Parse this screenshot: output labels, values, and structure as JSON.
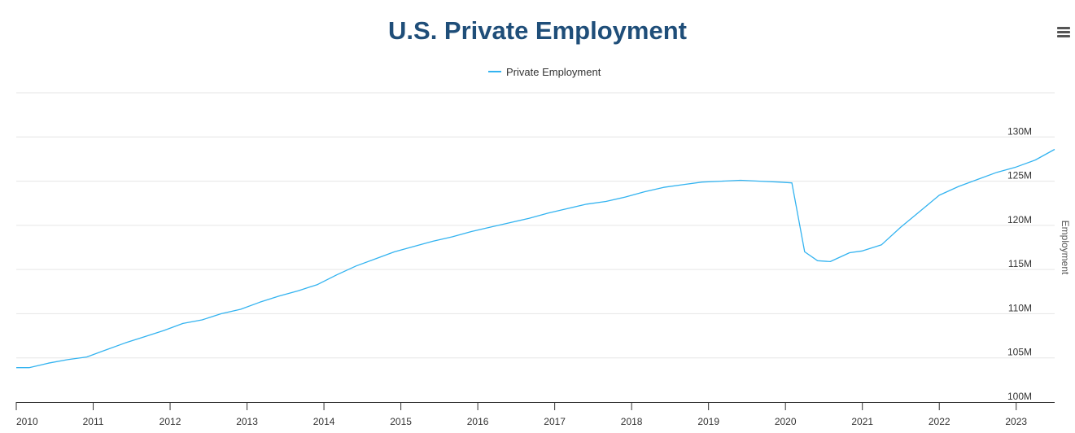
{
  "title": "U.S. Private Employment",
  "menu": {
    "icon": "hamburger-menu-icon"
  },
  "legend": {
    "label": "Private Employment",
    "color": "#33b3f0"
  },
  "colors": {
    "title": "#1f4e79",
    "series": "#33b3f0",
    "grid": "#e6e6e6",
    "axis": "#333333"
  },
  "chart_data": {
    "type": "line",
    "title": "U.S. Private Employment",
    "xlabel": "",
    "ylabel": "Employment",
    "y_axis_position": "right",
    "x_ticks": [
      "2010",
      "2011",
      "2012",
      "2013",
      "2014",
      "2015",
      "2016",
      "2017",
      "2018",
      "2019",
      "2020",
      "2021",
      "2022",
      "2023"
    ],
    "y_ticks": [
      "100M",
      "105M",
      "110M",
      "115M",
      "120M",
      "125M",
      "130M"
    ],
    "y_tick_values": [
      100,
      105,
      110,
      115,
      120,
      125,
      130
    ],
    "xlim": [
      "2010-01",
      "2023-07"
    ],
    "ylim": [
      100,
      135
    ],
    "y_unit": "millions",
    "grid": true,
    "legend_position": "top-center",
    "series": [
      {
        "name": "Private Employment",
        "x": [
          "2010-01",
          "2010-03",
          "2010-06",
          "2010-09",
          "2010-12",
          "2011-03",
          "2011-06",
          "2011-09",
          "2011-12",
          "2012-03",
          "2012-06",
          "2012-09",
          "2012-12",
          "2013-03",
          "2013-06",
          "2013-09",
          "2013-12",
          "2014-03",
          "2014-06",
          "2014-09",
          "2014-12",
          "2015-03",
          "2015-06",
          "2015-09",
          "2015-12",
          "2016-03",
          "2016-06",
          "2016-09",
          "2016-12",
          "2017-03",
          "2017-06",
          "2017-09",
          "2017-12",
          "2018-03",
          "2018-06",
          "2018-09",
          "2018-12",
          "2019-03",
          "2019-06",
          "2019-09",
          "2019-12",
          "2020-02",
          "2020-04",
          "2020-06",
          "2020-08",
          "2020-11",
          "2021-01",
          "2021-04",
          "2021-07",
          "2021-10",
          "2022-01",
          "2022-04",
          "2022-07",
          "2022-10",
          "2023-01",
          "2023-04",
          "2023-07"
        ],
        "y": [
          103.9,
          103.9,
          104.4,
          104.8,
          105.1,
          105.9,
          106.7,
          107.4,
          108.1,
          108.9,
          109.3,
          110.0,
          110.5,
          111.3,
          112.0,
          112.6,
          113.3,
          114.4,
          115.4,
          116.2,
          117.0,
          117.6,
          118.2,
          118.7,
          119.3,
          119.8,
          120.3,
          120.8,
          121.4,
          121.9,
          122.4,
          122.7,
          123.2,
          123.8,
          124.3,
          124.6,
          124.9,
          125.0,
          125.1,
          125.0,
          124.9,
          124.8,
          117.0,
          116.0,
          115.9,
          116.9,
          117.1,
          117.8,
          119.8,
          121.6,
          123.4,
          124.4,
          125.2,
          126.0,
          126.6,
          127.4,
          128.6
        ]
      }
    ]
  }
}
